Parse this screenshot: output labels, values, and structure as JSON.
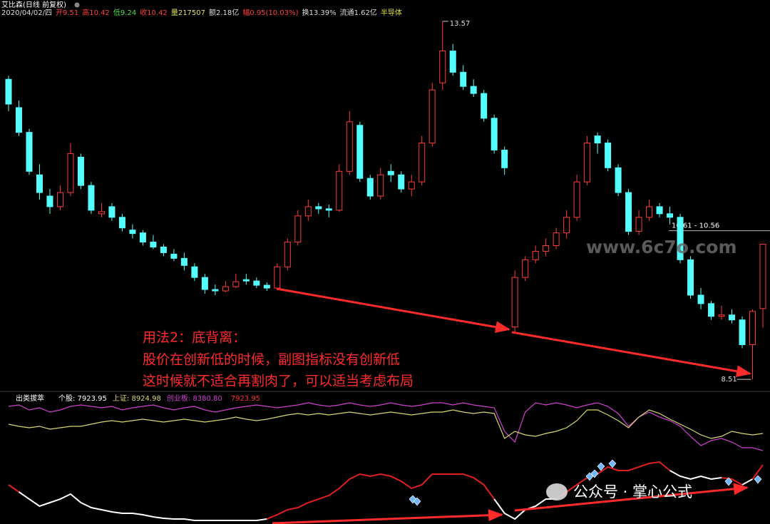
{
  "header": {
    "title": "艾比森(日线 前复权)",
    "items": [
      {
        "text": "2020/04/02/四",
        "color": "#dddddd"
      },
      {
        "text": "开9.51",
        "color": "#ff4040"
      },
      {
        "text": "高10.42",
        "color": "#ff4040"
      },
      {
        "text": "低9.24",
        "color": "#50e050"
      },
      {
        "text": "收10.42",
        "color": "#ff4040"
      },
      {
        "text": "量217507",
        "color": "#e0e060"
      },
      {
        "text": "额2.18亿",
        "color": "#dddddd"
      },
      {
        "text": "幅0.95(10.03%)",
        "color": "#ff4040"
      },
      {
        "text": "换13.39%",
        "color": "#dddddd"
      },
      {
        "text": "流通1.62亿",
        "color": "#dddddd"
      },
      {
        "text": "半导体",
        "color": "#e0e040"
      }
    ]
  },
  "note": [
    "用法2：底背离：",
    "股价在创新低的时候，副图指标没有创新低",
    "这时候就不适合再割肉了，可以适当考虑布局"
  ],
  "watermarks": [
    "www.6c7o.com",
    "公众号 · 掌心公式"
  ],
  "chart_data": [
    {
      "type": "candlestick",
      "up_color": "#ff3c3c",
      "down_color": "#54ffff",
      "ylim": [
        8.38,
        13.75
      ],
      "high_label": 13.57,
      "low_label": 8.51,
      "price_line": {
        "value": 10.61,
        "label": "10.61 - 10.56"
      },
      "ohlc": [
        [
          12.75,
          12.8,
          12.3,
          12.4
        ],
        [
          12.35,
          12.45,
          11.95,
          12.0
        ],
        [
          12.0,
          12.05,
          11.4,
          11.45
        ],
        [
          11.4,
          11.55,
          11.05,
          11.15
        ],
        [
          11.1,
          11.2,
          10.85,
          10.95
        ],
        [
          10.95,
          11.25,
          10.9,
          11.15
        ],
        [
          11.15,
          11.85,
          11.1,
          11.7
        ],
        [
          11.65,
          11.7,
          11.2,
          11.25
        ],
        [
          11.25,
          11.3,
          10.85,
          10.9
        ],
        [
          10.85,
          11.0,
          10.8,
          10.88
        ],
        [
          10.95,
          11.0,
          10.75,
          10.8
        ],
        [
          10.8,
          10.85,
          10.6,
          10.65
        ],
        [
          10.62,
          10.7,
          10.5,
          10.57
        ],
        [
          10.58,
          10.62,
          10.4,
          10.45
        ],
        [
          10.45,
          10.55,
          10.35,
          10.38
        ],
        [
          10.38,
          10.42,
          10.25,
          10.3
        ],
        [
          10.28,
          10.35,
          10.18,
          10.22
        ],
        [
          10.22,
          10.3,
          10.05,
          10.12
        ],
        [
          10.1,
          10.15,
          9.9,
          9.95
        ],
        [
          9.95,
          10.0,
          9.72,
          9.78
        ],
        [
          9.78,
          9.85,
          9.7,
          9.76
        ],
        [
          9.76,
          9.9,
          9.74,
          9.82
        ],
        [
          9.82,
          10.0,
          9.8,
          9.89
        ],
        [
          9.92,
          10.0,
          9.85,
          9.9
        ],
        [
          9.9,
          9.95,
          9.8,
          9.84
        ],
        [
          9.84,
          9.88,
          9.76,
          9.8
        ],
        [
          9.8,
          10.15,
          9.78,
          10.1
        ],
        [
          10.1,
          10.5,
          10.05,
          10.45
        ],
        [
          10.45,
          10.9,
          10.4,
          10.82
        ],
        [
          10.82,
          11.05,
          10.75,
          10.95
        ],
        [
          10.95,
          11.0,
          10.85,
          10.92
        ],
        [
          10.92,
          10.98,
          10.8,
          10.9
        ],
        [
          10.9,
          11.55,
          10.88,
          11.45
        ],
        [
          11.45,
          12.3,
          11.4,
          12.15
        ],
        [
          12.1,
          12.15,
          11.3,
          11.35
        ],
        [
          11.35,
          11.4,
          11.05,
          11.1
        ],
        [
          11.1,
          11.5,
          11.05,
          11.4
        ],
        [
          11.45,
          11.55,
          11.3,
          11.4
        ],
        [
          11.4,
          11.45,
          11.15,
          11.2
        ],
        [
          11.2,
          11.4,
          11.1,
          11.3
        ],
        [
          11.3,
          11.95,
          11.25,
          11.85
        ],
        [
          11.85,
          12.7,
          11.8,
          12.6
        ],
        [
          12.7,
          13.57,
          12.6,
          13.15
        ],
        [
          13.15,
          13.25,
          12.8,
          12.85
        ],
        [
          12.85,
          12.95,
          12.6,
          12.65
        ],
        [
          12.65,
          12.75,
          12.5,
          12.55
        ],
        [
          12.55,
          12.6,
          12.15,
          12.2
        ],
        [
          12.2,
          12.25,
          11.7,
          11.75
        ],
        [
          11.75,
          11.8,
          11.4,
          11.5
        ],
        [
          9.25,
          10.05,
          9.18,
          9.95
        ],
        [
          9.95,
          10.25,
          9.9,
          10.2
        ],
        [
          10.2,
          10.4,
          10.15,
          10.32
        ],
        [
          10.32,
          10.5,
          10.25,
          10.4
        ],
        [
          10.4,
          10.65,
          10.35,
          10.58
        ],
        [
          10.58,
          10.9,
          10.5,
          10.8
        ],
        [
          10.8,
          11.4,
          10.75,
          11.3
        ],
        [
          11.3,
          11.95,
          11.25,
          11.85
        ],
        [
          11.95,
          12.0,
          11.7,
          11.85
        ],
        [
          11.85,
          11.9,
          11.45,
          11.5
        ],
        [
          11.5,
          11.55,
          11.1,
          11.15
        ],
        [
          11.15,
          11.2,
          10.55,
          10.6
        ],
        [
          10.6,
          10.9,
          10.55,
          10.8
        ],
        [
          10.8,
          11.05,
          10.75,
          10.95
        ],
        [
          10.95,
          11.0,
          10.8,
          10.85
        ],
        [
          10.85,
          10.95,
          10.7,
          10.8
        ],
        [
          10.8,
          10.85,
          10.15,
          10.2
        ],
        [
          10.2,
          10.25,
          9.65,
          9.7
        ],
        [
          9.7,
          9.8,
          9.5,
          9.58
        ],
        [
          9.58,
          9.62,
          9.35,
          9.4
        ],
        [
          9.4,
          9.55,
          9.35,
          9.42
        ],
        [
          9.42,
          9.5,
          9.3,
          9.35
        ],
        [
          9.35,
          9.4,
          8.95,
          9.0
        ],
        [
          9.0,
          9.5,
          8.51,
          9.47
        ],
        [
          9.51,
          10.42,
          9.24,
          10.42
        ]
      ]
    },
    {
      "type": "line",
      "title": "出类拔萃",
      "latest": 7923.95,
      "ylim": [
        6046,
        9945
      ],
      "series": [
        {
          "name": "个股: 7923.95",
          "color": "#ffffff",
          "colors": [
            "#e02020",
            "#e02020",
            "#ffffff",
            "#ffffff",
            "#ffffff",
            "#ffffff",
            "#ffffff",
            "#ffffff",
            "#ffffff",
            "#ffffff",
            "#ffffff",
            "#ffffff",
            "#ffffff",
            "#ffffff",
            "#ffffff",
            "#ffffff",
            "#ffffff",
            "#ffffff",
            "#ffffff",
            "#ffffff",
            "#ffffff",
            "#ffffff",
            "#ffffff",
            "#ffffff",
            "#ffffff",
            "#ffffff",
            "#e02020",
            "#e02020",
            "#e02020",
            "#e02020",
            "#e02020",
            "#e02020",
            "#e02020",
            "#e02020",
            "#e02020",
            "#e02020",
            "#e02020",
            "#e02020",
            "#e02020",
            "#e02020",
            "#e02020",
            "#e02020",
            "#e02020",
            "#e02020",
            "#e02020",
            "#e02020",
            "#e02020",
            "#e02020",
            "#ffffff",
            "#ffffff",
            "#ffffff",
            "#ffffff",
            "#ffffff",
            "#ffffff",
            "#e02020",
            "#e02020",
            "#e02020",
            "#e02020",
            "#e02020",
            "#e02020",
            "#e02020",
            "#e02020",
            "#e02020",
            "#e02020",
            "#e02020",
            "#ffffff",
            "#ffffff",
            "#ffffff",
            "#ffffff",
            "#ffffff",
            "#e02020",
            "#e02020",
            "#ffffff",
            "#e02020"
          ],
          "values": [
            7293,
            7066,
            6839,
            6613,
            6726,
            6839,
            6998,
            6726,
            6567,
            6499,
            6431,
            6386,
            6386,
            6341,
            6273,
            6227,
            6205,
            6205,
            6159,
            6159,
            6159,
            6159,
            6159,
            6159,
            6159,
            6205,
            6341,
            6499,
            6567,
            6726,
            6839,
            6953,
            7179,
            7474,
            7633,
            7565,
            7633,
            7565,
            7406,
            7179,
            7293,
            7633,
            7633,
            7633,
            7633,
            7519,
            7293,
            6839,
            6386,
            6205,
            6499,
            6613,
            6839,
            6839,
            7066,
            7293,
            7519,
            7633,
            7860,
            7746,
            7746,
            7860,
            7973,
            8018,
            7746,
            7565,
            7474,
            7565,
            7474,
            7519,
            7474,
            7293,
            7474,
            7923.95
          ]
        },
        {
          "name": "上证: 8924.98",
          "color": "#d8d870",
          "values": [
            9220,
            9152,
            9106,
            9152,
            9061,
            9106,
            9152,
            9152,
            9220,
            9288,
            9333,
            9288,
            9333,
            9378,
            9333,
            9288,
            9333,
            9378,
            9333,
            9288,
            9333,
            9378,
            9446,
            9378,
            9333,
            9378,
            9446,
            9514,
            9560,
            9514,
            9560,
            9514,
            9560,
            9605,
            9560,
            9514,
            9560,
            9605,
            9560,
            9514,
            9560,
            9605,
            9605,
            9673,
            9605,
            9560,
            9605,
            9560,
            8766,
            8993,
            8880,
            8834,
            8925,
            8993,
            9106,
            9333,
            9673,
            9673,
            9514,
            9333,
            9106,
            9446,
            9673,
            9560,
            9378,
            9220,
            9061,
            8880,
            8766,
            8834,
            8993,
            8925,
            8880,
            8924.98
          ]
        },
        {
          "name": "创业板: 8380.80",
          "color": "#d040d0",
          "values": [
            9786,
            9832,
            9673,
            9741,
            9605,
            9673,
            9786,
            9832,
            9786,
            9741,
            9786,
            9673,
            9741,
            9786,
            9832,
            9741,
            9673,
            9741,
            9786,
            9673,
            9605,
            9673,
            9741,
            9786,
            9832,
            9786,
            9741,
            9786,
            9832,
            9900,
            9832,
            9786,
            9832,
            9900,
            9832,
            9786,
            9832,
            9900,
            9832,
            9786,
            9832,
            9900,
            9900,
            9832,
            9900,
            9832,
            9786,
            9741,
            8993,
            8653,
            9605,
            9900,
            9832,
            9900,
            9832,
            9741,
            9832,
            9900,
            9786,
            9560,
            9152,
            9446,
            9605,
            9446,
            9333,
            9152,
            8834,
            8540,
            8698,
            8766,
            8653,
            8472,
            8472,
            8380.8
          ]
        }
      ]
    }
  ]
}
